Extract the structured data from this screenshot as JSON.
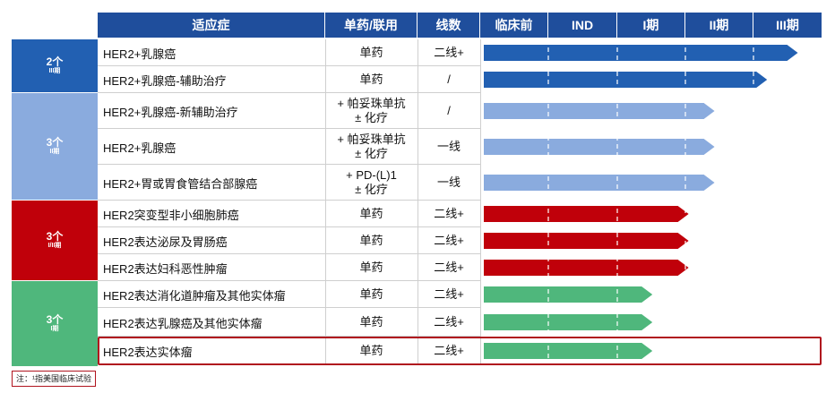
{
  "headers": {
    "indication": "适应症",
    "regimen": "单药/联用",
    "line": "线数",
    "phases": [
      "临床前",
      "IND",
      "I期",
      "II期",
      "III期"
    ]
  },
  "groups": [
    {
      "count": "2个",
      "phase": "III期",
      "color": "#2260b2",
      "rows": 2
    },
    {
      "count": "3个",
      "phase": "II期",
      "color": "#8aabde",
      "rows": 3
    },
    {
      "count": "3个",
      "phase": "I/II期",
      "color": "#c0000a",
      "rows": 3
    },
    {
      "count": "3个",
      "phase": "I期",
      "color": "#4fb77c",
      "rows": 3
    }
  ],
  "rows": [
    {
      "indication": "HER2+乳腺癌",
      "regimen": [
        "单药"
      ],
      "line": "二线+",
      "progress": 4.6,
      "color": "#2260b2"
    },
    {
      "indication": "HER2+乳腺癌-辅助治疗",
      "regimen": [
        "单药"
      ],
      "line": "/",
      "progress": 4.15,
      "color": "#2260b2"
    },
    {
      "indication": "HER2+乳腺癌-新辅助治疗",
      "regimen": [
        "+ 帕妥珠单抗",
        "± 化疗"
      ],
      "line": "/",
      "progress": 3.38,
      "color": "#8aabde"
    },
    {
      "indication": "HER2+乳腺癌",
      "regimen": [
        "+ 帕妥珠单抗",
        "± 化疗"
      ],
      "line": "一线",
      "progress": 3.38,
      "color": "#8aabde"
    },
    {
      "indication": "HER2+胃或胃食管结合部腺癌",
      "regimen": [
        "+ PD-(L)1",
        "± 化疗"
      ],
      "line": "一线",
      "progress": 3.38,
      "color": "#8aabde"
    },
    {
      "indication": "HER2突变型非小细胞肺癌",
      "regimen": [
        "单药"
      ],
      "line": "二线+",
      "progress": 3.0,
      "color": "#c0000a"
    },
    {
      "indication": "HER2表达泌尿及胃肠癌",
      "regimen": [
        "单药"
      ],
      "line": "二线+",
      "progress": 3.0,
      "color": "#c0000a"
    },
    {
      "indication": "HER2表达妇科恶性肿瘤",
      "regimen": [
        "单药"
      ],
      "line": "二线+",
      "progress": 3.0,
      "color": "#c0000a"
    },
    {
      "indication": "HER2表达消化道肿瘤及其他实体瘤",
      "regimen": [
        "单药"
      ],
      "line": "二线+",
      "progress": 2.47,
      "color": "#4fb77c"
    },
    {
      "indication": "HER2表达乳腺癌及其他实体瘤",
      "regimen": [
        "单药"
      ],
      "line": "二线+",
      "progress": 2.47,
      "color": "#4fb77c"
    },
    {
      "indication": "HER2表达实体瘤",
      "regimen": [
        "单药"
      ],
      "line": "二线+",
      "progress": 2.47,
      "color": "#4fb77c",
      "highlighted": true
    }
  ],
  "note": "注：¹指美国临床试验",
  "chart_data": {
    "type": "bar",
    "categories": [
      "HER2+乳腺癌",
      "HER2+乳腺癌-辅助治疗",
      "HER2+乳腺癌-新辅助治疗",
      "HER2+乳腺癌",
      "HER2+胃或胃食管结合部腺癌",
      "HER2突变型非小细胞肺癌",
      "HER2表达泌尿及胃肠癌",
      "HER2表达妇科恶性肿瘤",
      "HER2表达消化道肿瘤及其他实体瘤",
      "HER2表达乳腺癌及其他实体瘤",
      "HER2表达实体瘤"
    ],
    "x_axis_phases": [
      "临床前",
      "IND",
      "I期",
      "II期",
      "III期"
    ],
    "values": [
      4.6,
      4.15,
      3.38,
      3.38,
      3.38,
      3.0,
      3.0,
      3.0,
      2.47,
      2.47,
      2.47
    ],
    "xlim": [
      0,
      5
    ],
    "orientation": "horizontal"
  }
}
